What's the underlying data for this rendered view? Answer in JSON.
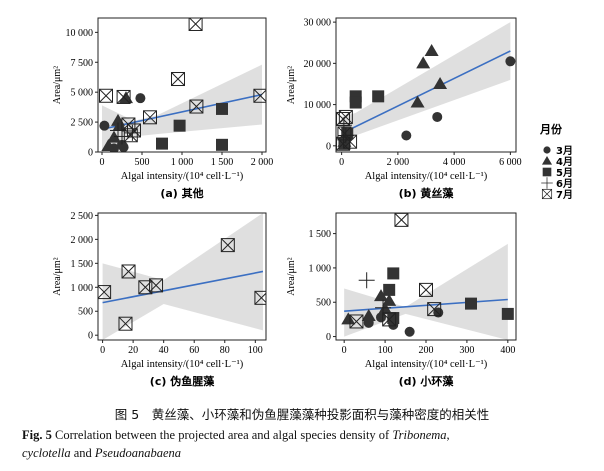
{
  "legend": {
    "title": "月份",
    "items": [
      {
        "label": "3月",
        "marker": "circle"
      },
      {
        "label": "4月",
        "marker": "triangle"
      },
      {
        "label": "5月",
        "marker": "square"
      },
      {
        "label": "6月",
        "marker": "plus"
      },
      {
        "label": "7月",
        "marker": "xbox"
      }
    ]
  },
  "caption": {
    "cn": "图 5　黄丝藻、小环藻和伪鱼腥藻藻种投影面积与藻种密度的相关性",
    "en_prefix": "Fig. 5",
    "en_text_1": "Correlation between the projected area and algal species density of",
    "en_species_1": "Tribonema",
    "en_comma": ",",
    "en_species_2": "cyclotella",
    "en_and": "and",
    "en_species_3": "Pseudoanabaena"
  },
  "chart_data": [
    {
      "type": "scatter",
      "panel_label": "(a) 其他",
      "xlabel": "Algal intensity/(10⁴ cell·L⁻¹)",
      "ylabel": "Area/μm²",
      "xlim": [
        -50,
        2050
      ],
      "ylim": [
        0,
        11200
      ],
      "xticks": [
        0,
        500,
        1000,
        1500,
        2000
      ],
      "xtick_labels": [
        "0",
        "500",
        "1 000",
        "1 500",
        "2 000"
      ],
      "yticks": [
        0,
        2500,
        5000,
        7500,
        10000
      ],
      "ytick_labels": [
        "0",
        "2 500",
        "5 000",
        "7 500",
        "10 000"
      ],
      "fit": {
        "x": [
          0,
          2000
        ],
        "y": [
          1900,
          4800
        ]
      },
      "band": {
        "upper": [
          3900,
          2600,
          3100,
          7300
        ],
        "lower": [
          0,
          1300,
          1500,
          2300
        ],
        "x": [
          0,
          400,
          700,
          2000
        ]
      },
      "points": [
        {
          "m": "circle",
          "x": 30,
          "y": 2200
        },
        {
          "m": "circle",
          "x": 150,
          "y": 300
        },
        {
          "m": "circle",
          "x": 250,
          "y": 600
        },
        {
          "m": "circle",
          "x": 270,
          "y": 400
        },
        {
          "m": "circle",
          "x": 480,
          "y": 4500
        },
        {
          "m": "triangle",
          "x": 80,
          "y": 500
        },
        {
          "m": "triangle",
          "x": 150,
          "y": 1200
        },
        {
          "m": "triangle",
          "x": 200,
          "y": 2600
        },
        {
          "m": "triangle",
          "x": 220,
          "y": 2200
        },
        {
          "m": "triangle",
          "x": 300,
          "y": 4500
        },
        {
          "m": "square",
          "x": 750,
          "y": 700
        },
        {
          "m": "square",
          "x": 970,
          "y": 2200
        },
        {
          "m": "square",
          "x": 1500,
          "y": 3600
        },
        {
          "m": "square",
          "x": 1500,
          "y": 600
        },
        {
          "m": "plus",
          "x": 200,
          "y": 1800
        },
        {
          "m": "plus",
          "x": 380,
          "y": 1600
        },
        {
          "m": "plus",
          "x": 250,
          "y": 1300
        },
        {
          "m": "xbox",
          "x": 50,
          "y": 4700
        },
        {
          "m": "xbox",
          "x": 270,
          "y": 4600
        },
        {
          "m": "xbox",
          "x": 330,
          "y": 2300
        },
        {
          "m": "xbox",
          "x": 400,
          "y": 1800
        },
        {
          "m": "xbox",
          "x": 360,
          "y": 1400
        },
        {
          "m": "xbox",
          "x": 600,
          "y": 2900
        },
        {
          "m": "xbox",
          "x": 950,
          "y": 6100
        },
        {
          "m": "xbox",
          "x": 1180,
          "y": 3800
        },
        {
          "m": "xbox",
          "x": 1170,
          "y": 10700
        },
        {
          "m": "xbox",
          "x": 1980,
          "y": 4700
        }
      ]
    },
    {
      "type": "scatter",
      "panel_label": "(b) 黄丝藻",
      "xlabel": "Algal intensity/(10⁴ cell·L⁻¹)",
      "ylabel": "Area/μm²",
      "xlim": [
        -200,
        6200
      ],
      "ylim": [
        -1500,
        31000
      ],
      "xticks": [
        0,
        2000,
        4000,
        6000
      ],
      "xtick_labels": [
        "0",
        "2 000",
        "4 000",
        "6 000"
      ],
      "yticks": [
        0,
        10000,
        20000,
        30000
      ],
      "ytick_labels": [
        "0",
        "10 000",
        "20 000",
        "30 000"
      ],
      "fit": {
        "x": [
          0,
          6000
        ],
        "y": [
          3000,
          23000
        ]
      },
      "band": {
        "upper": [
          7000,
          8000,
          30000
        ],
        "lower": [
          -300,
          2500,
          16000
        ],
        "x": [
          0,
          500,
          6000
        ]
      },
      "points": [
        {
          "m": "circle",
          "x": 2300,
          "y": 2500
        },
        {
          "m": "circle",
          "x": 3400,
          "y": 7000
        },
        {
          "m": "circle",
          "x": 6000,
          "y": 20500
        },
        {
          "m": "circle",
          "x": 100,
          "y": 500
        },
        {
          "m": "triangle",
          "x": 2900,
          "y": 20000
        },
        {
          "m": "triangle",
          "x": 2700,
          "y": 10500
        },
        {
          "m": "triangle",
          "x": 3200,
          "y": 23000
        },
        {
          "m": "triangle",
          "x": 3500,
          "y": 15000
        },
        {
          "m": "triangle",
          "x": 100,
          "y": 1000
        },
        {
          "m": "square",
          "x": 500,
          "y": 12000
        },
        {
          "m": "square",
          "x": 500,
          "y": 10500
        },
        {
          "m": "square",
          "x": 1300,
          "y": 12000
        },
        {
          "m": "square",
          "x": 200,
          "y": 3000
        },
        {
          "m": "square",
          "x": 100,
          "y": 500
        },
        {
          "m": "plus",
          "x": 80,
          "y": 5000
        },
        {
          "m": "plus",
          "x": 150,
          "y": 2500
        },
        {
          "m": "xbox",
          "x": 50,
          "y": 6500
        },
        {
          "m": "xbox",
          "x": 150,
          "y": 7000
        },
        {
          "m": "xbox",
          "x": 100,
          "y": 3000
        },
        {
          "m": "xbox",
          "x": 300,
          "y": 1000
        },
        {
          "m": "xbox",
          "x": 50,
          "y": 500
        }
      ]
    },
    {
      "type": "scatter",
      "panel_label": "(c) 伪鱼腥藻",
      "xlabel": "Algal intensity/(10⁴ cell·L⁻¹)",
      "ylabel": "Area/μm²",
      "xlim": [
        -3,
        107
      ],
      "ylim": [
        -100,
        2550
      ],
      "xticks": [
        0,
        20,
        40,
        60,
        80,
        100
      ],
      "xtick_labels": [
        "0",
        "20",
        "40",
        "60",
        "80",
        "100"
      ],
      "yticks": [
        0,
        500,
        1000,
        1500,
        2000,
        2500
      ],
      "ytick_labels": [
        "0",
        "500",
        "1 000",
        "1 500",
        "2 000",
        "2 500"
      ],
      "fit": {
        "x": [
          0,
          105
        ],
        "y": [
          680,
          1330
        ]
      },
      "band": {
        "upper": [
          1500,
          1150,
          2550
        ],
        "lower": [
          -100,
          650,
          100
        ],
        "x": [
          0,
          40,
          105
        ]
      },
      "points": [
        {
          "m": "xbox",
          "x": 1,
          "y": 900
        },
        {
          "m": "xbox",
          "x": 15,
          "y": 240
        },
        {
          "m": "xbox",
          "x": 17,
          "y": 1330
        },
        {
          "m": "xbox",
          "x": 28,
          "y": 1000
        },
        {
          "m": "xbox",
          "x": 35,
          "y": 1040
        },
        {
          "m": "xbox",
          "x": 82,
          "y": 1880
        },
        {
          "m": "xbox",
          "x": 104,
          "y": 780
        }
      ]
    },
    {
      "type": "scatter",
      "panel_label": "(d) 小环藻",
      "xlabel": "Algal intensity/(10⁴ cell·L⁻¹)",
      "ylabel": "Area/μm²",
      "xlim": [
        -20,
        420
      ],
      "ylim": [
        -50,
        1800
      ],
      "xticks": [
        0,
        100,
        200,
        300,
        400
      ],
      "xtick_labels": [
        "0",
        "100",
        "200",
        "300",
        "400"
      ],
      "yticks": [
        0,
        500,
        1000,
        1500
      ],
      "ytick_labels": [
        "0",
        "500",
        "1 000",
        "1 500"
      ],
      "fit": {
        "x": [
          0,
          400
        ],
        "y": [
          370,
          540
        ]
      },
      "band": {
        "upper": [
          700,
          430,
          1350
        ],
        "lower": [
          0,
          330,
          -50
        ],
        "x": [
          0,
          150,
          400
        ]
      },
      "points": [
        {
          "m": "circle",
          "x": 60,
          "y": 200
        },
        {
          "m": "circle",
          "x": 90,
          "y": 280
        },
        {
          "m": "circle",
          "x": 120,
          "y": 170
        },
        {
          "m": "circle",
          "x": 230,
          "y": 350
        },
        {
          "m": "circle",
          "x": 160,
          "y": 70
        },
        {
          "m": "triangle",
          "x": 10,
          "y": 250
        },
        {
          "m": "triangle",
          "x": 90,
          "y": 590
        },
        {
          "m": "triangle",
          "x": 110,
          "y": 520
        },
        {
          "m": "triangle",
          "x": 100,
          "y": 400
        },
        {
          "m": "triangle",
          "x": 60,
          "y": 300
        },
        {
          "m": "square",
          "x": 110,
          "y": 680
        },
        {
          "m": "square",
          "x": 120,
          "y": 920
        },
        {
          "m": "square",
          "x": 310,
          "y": 480
        },
        {
          "m": "square",
          "x": 400,
          "y": 330
        },
        {
          "m": "square",
          "x": 120,
          "y": 270
        },
        {
          "m": "plus",
          "x": 55,
          "y": 820
        },
        {
          "m": "plus",
          "x": 95,
          "y": 420
        },
        {
          "m": "xbox",
          "x": 140,
          "y": 1700
        },
        {
          "m": "xbox",
          "x": 200,
          "y": 680
        },
        {
          "m": "xbox",
          "x": 220,
          "y": 400
        },
        {
          "m": "xbox",
          "x": 30,
          "y": 220
        },
        {
          "m": "xbox",
          "x": 110,
          "y": 250
        }
      ]
    }
  ]
}
